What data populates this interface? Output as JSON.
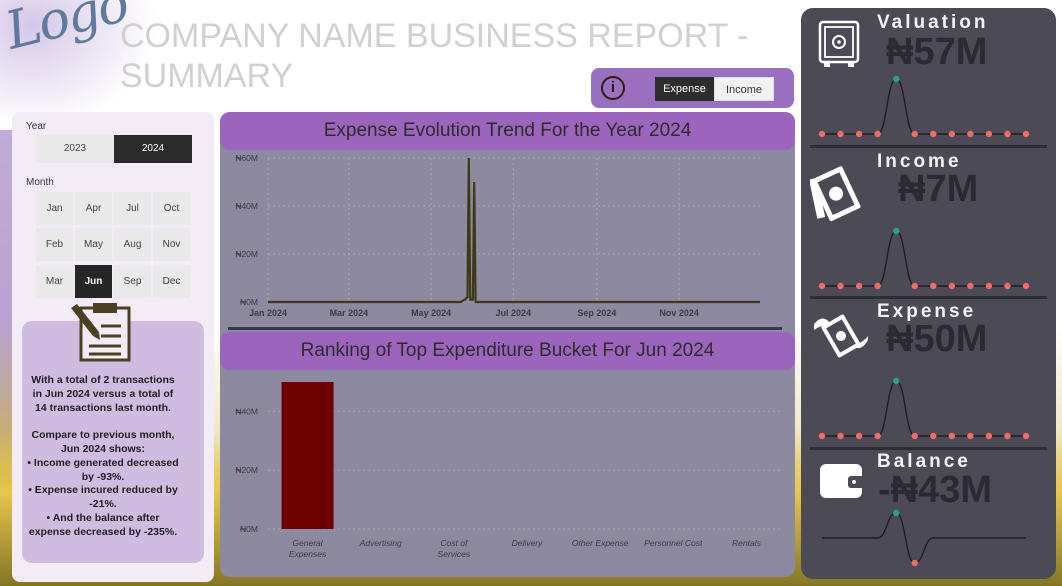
{
  "header": {
    "logo_text": "Logo",
    "title_line1": "COMPANY NAME BUSINESS REPORT -",
    "title_line2": "SUMMARY"
  },
  "toggle": {
    "info_icon": "info-icon",
    "options": [
      "Expense",
      "Income"
    ],
    "selected": "Expense"
  },
  "filters": {
    "year_label": "Year",
    "years": [
      "2023",
      "2024"
    ],
    "selected_year": "2024",
    "month_label": "Month",
    "months": [
      [
        "Jan",
        "Apr",
        "Jul",
        "Oct"
      ],
      [
        "Feb",
        "May",
        "Aug",
        "Nov"
      ],
      [
        "Mar",
        "Jun",
        "Sep",
        "Dec"
      ]
    ],
    "selected_month": "Jun"
  },
  "summary": {
    "icon": "clipboard-icon",
    "text": "With a total of 2 transactions\nin Jun 2024 versus a total of\n14 transactions last month.\n\nCompare to previous month,\nJun 2024 shows:\n• Income generated decreased\nby -93%.\n• Expense incured reduced by\n-21%.\n• And the balance after\nexpense decreased by -235%."
  },
  "trend_chart": {
    "title": "Expense Evolution Trend For the Year 2024",
    "chart_data": {
      "type": "line",
      "title": "Expense Evolution Trend For the Year 2024",
      "x_ticks": [
        "Jan 2024",
        "Mar 2024",
        "May 2024",
        "Jul 2024",
        "Sep 2024",
        "Nov 2024"
      ],
      "y_ticks": [
        "₦0M",
        "₦20M",
        "₦40M",
        "₦60M"
      ],
      "ylim": [
        0,
        60
      ],
      "grid": true,
      "points": [
        {
          "x": "2024-01-01",
          "y": 0
        },
        {
          "x": "2024-05-23",
          "y": 0
        },
        {
          "x": "2024-05-26",
          "y": 1
        },
        {
          "x": "2024-05-28",
          "y": 2
        },
        {
          "x": "2024-05-29",
          "y": 60
        },
        {
          "x": "2024-05-30",
          "y": 1
        },
        {
          "x": "2024-06-01",
          "y": 1
        },
        {
          "x": "2024-06-02",
          "y": 50
        },
        {
          "x": "2024-06-03",
          "y": 0
        },
        {
          "x": "2024-12-31",
          "y": 0
        }
      ],
      "color": "#3e3a16"
    }
  },
  "ranking_chart": {
    "title": "Ranking of Top Expenditure Bucket For Jun 2024",
    "chart_data": {
      "type": "bar",
      "title": "Ranking of Top Expenditure Bucket For Jun 2024",
      "categories": [
        "General Expenses",
        "Advertising",
        "Cost of Services",
        "Delivery",
        "Other Expense",
        "Personnel Cost",
        "Rentals"
      ],
      "category_lines": [
        [
          "General",
          "Expenses"
        ],
        [
          "Advertising"
        ],
        [
          "Cost of",
          "Services"
        ],
        [
          "Delivery"
        ],
        [
          "Other Expense"
        ],
        [
          "Personnel Cost"
        ],
        [
          "Rentals"
        ]
      ],
      "values": [
        50,
        0,
        0,
        0,
        0,
        0,
        0
      ],
      "y_ticks": [
        "₦0M",
        "₦20M",
        "₦40M"
      ],
      "ylim": [
        0,
        50
      ],
      "color": "#6e0000",
      "grid": true
    }
  },
  "kpis": [
    {
      "title": "Valuation",
      "value": "₦57M",
      "icon": "safe-icon",
      "sparkline": [
        0,
        0,
        0,
        0,
        10,
        0,
        0,
        0,
        0,
        0,
        0,
        0
      ],
      "peak_index": 4
    },
    {
      "title": "Income",
      "value": "₦7M",
      "icon": "money-bills-icon",
      "sparkline": [
        0,
        0,
        0,
        0,
        10,
        0,
        0,
        0,
        0,
        0,
        0,
        0
      ],
      "peak_index": 4
    },
    {
      "title": "Expense",
      "value": "₦50M",
      "icon": "flying-money-icon",
      "sparkline": [
        0,
        0,
        0,
        0,
        10,
        0,
        0,
        0,
        0,
        0,
        0,
        0
      ],
      "peak_index": 4
    },
    {
      "title": "Balance",
      "value": "-₦43M",
      "icon": "wallet-icon",
      "sparkline": [
        0,
        0,
        0,
        0,
        10,
        -10,
        0,
        0,
        0,
        0,
        0,
        0
      ],
      "peak_index": 4,
      "low_index": 5
    }
  ],
  "colors": {
    "accent_purple": "#9b65bd",
    "panel_dark": "#4b4a55",
    "marker_red": "#f26a6a",
    "marker_teal": "#2e9c93",
    "bar": "#6e0000"
  }
}
